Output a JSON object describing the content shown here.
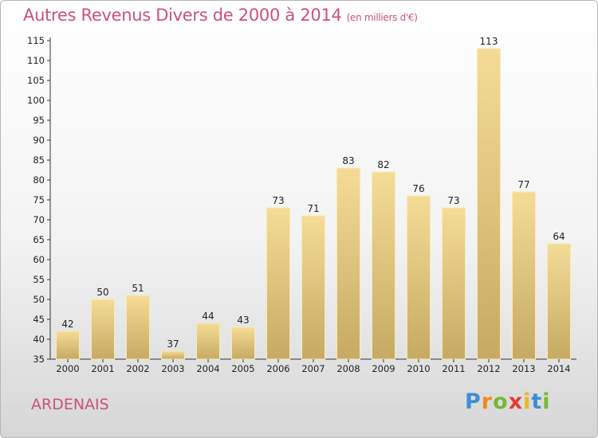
{
  "header": {
    "title": "Autres Revenus Divers de 2000 à 2014",
    "unit": "(en milliers d'€)"
  },
  "footer": {
    "region": "ARDENAIS",
    "logo": {
      "letters": [
        "P",
        "r",
        "o",
        "x",
        "i",
        "t",
        "i"
      ],
      "colors": [
        "#3b8fd6",
        "#f08a1c",
        "#74b83a",
        "#e23b3b",
        "#f0b51c",
        "#3b8fd6",
        "#74b83a"
      ]
    }
  },
  "colors": {
    "title": "#c9527d",
    "bar_light": "#f5dc96",
    "bar_dark": "#c6aa63"
  },
  "chart_data": {
    "type": "bar",
    "categories": [
      "2000",
      "2001",
      "2002",
      "2003",
      "2004",
      "2005",
      "2006",
      "2007",
      "2008",
      "2009",
      "2010",
      "2011",
      "2012",
      "2013",
      "2014"
    ],
    "values": [
      42,
      50,
      51,
      37,
      44,
      43,
      73,
      71,
      83,
      82,
      76,
      73,
      113,
      77,
      64
    ],
    "ylim": [
      35,
      115
    ],
    "yticks": [
      35,
      40,
      45,
      50,
      55,
      60,
      65,
      70,
      75,
      80,
      85,
      90,
      95,
      100,
      105,
      110,
      115
    ],
    "grid": false,
    "data_labels": true
  }
}
